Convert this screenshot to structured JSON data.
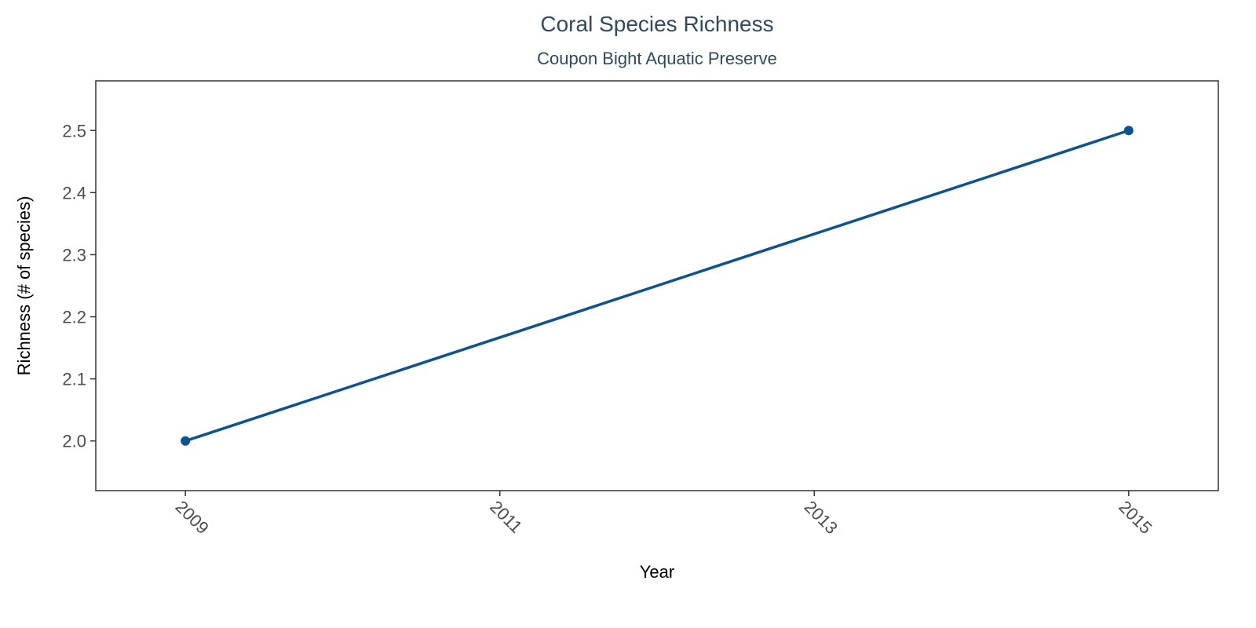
{
  "chart_data": {
    "type": "line",
    "title": "Coral Species Richness",
    "subtitle": "Coupon Bight Aquatic Preserve",
    "xlabel": "Year",
    "ylabel": "Richness (# of species)",
    "xlim": [
      2008.43,
      2015.57
    ],
    "ylim": [
      1.92,
      2.58
    ],
    "x_ticks": [
      2009,
      2011,
      2013,
      2015
    ],
    "x_tick_labels": [
      "2009",
      "2011",
      "2013",
      "2015"
    ],
    "y_ticks": [
      2.0,
      2.1,
      2.2,
      2.3,
      2.4,
      2.5
    ],
    "y_tick_labels": [
      "2.0",
      "2.1",
      "2.2",
      "2.3",
      "2.4",
      "2.5"
    ],
    "grid": false,
    "legend": "none",
    "series": [
      {
        "x": [
          2009,
          2015
        ],
        "y": [
          2.0,
          2.5
        ],
        "color": "#0b5394"
      }
    ]
  }
}
